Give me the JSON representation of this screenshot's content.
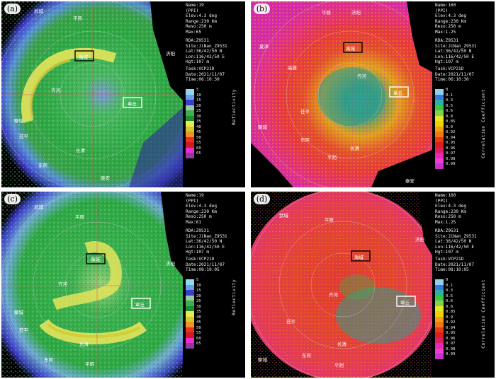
{
  "panels": [
    {
      "label": "(a)",
      "info": {
        "name": "Name:19",
        "product": "(PPI)",
        "elev": "Elev:4.3 deg",
        "range": "Range:230 Km",
        "reso": "Reso:250 m",
        "max": "Max:65",
        "rda": "RDA:Z9531",
        "site": "Site:JiNan_Z9531",
        "lat": "Lat:36/42/50 N",
        "lon": "Lon:116/42/50 E",
        "hgt": "Hgt:107 m",
        "task": "Task:VCP21D",
        "date": "Date:2021/11/07",
        "time": "Time:06:10:30"
      },
      "colorbar_title": "Reflectivity",
      "ticks": [
        "5",
        "10",
        "15",
        "20",
        "25",
        "30",
        "35",
        "40",
        "45",
        "50",
        "55",
        "60",
        "65"
      ],
      "colors": [
        "#90d8f0",
        "#6aa0e6",
        "#3c3ccd",
        "#99c8a0",
        "#3cb050",
        "#1e8c32",
        "#e8e850",
        "#d2c832",
        "#f09228",
        "#f02d1e",
        "#c81e1e",
        "#f028d2",
        "#8c3ca0"
      ],
      "places": [
        "武城",
        "平原",
        "禹城",
        "济阳",
        "章丘",
        "齐河",
        "茌平",
        "东阿",
        "泰安",
        "聊城",
        "长清"
      ]
    },
    {
      "label": "(b)",
      "info": {
        "name": "Name:160",
        "product": "(PPI)",
        "elev": "Elev:4.3 deg",
        "range": "Range:230 Km",
        "reso": "Reso:250 m",
        "max": "Max:1.25",
        "rda": "RDA:Z9531",
        "site": "Site:JiNan_Z9531",
        "lat": "Lat:36/42/50 N",
        "lon": "Lon:116/42/50 E",
        "hgt": "Hgt:107 m",
        "task": "Task:VCP21D",
        "date": "Date:2021/11/07",
        "time": "Time:06:10:30"
      },
      "colorbar_title": "Correlation Coefficient",
      "ticks": [
        "0",
        "0.1",
        "0.3",
        "0.5",
        "0.6",
        "0.8",
        "0.85",
        "0.9",
        "0.92",
        "0.94",
        "0.95",
        "0.96",
        "0.97",
        "0.98",
        "0.99"
      ],
      "colors": [
        "#8cd2f0",
        "#3c78dc",
        "#28b4a0",
        "#3cc83c",
        "#82d250",
        "#e6e628",
        "#f0d200",
        "#f0a014",
        "#f07814",
        "#e63c14",
        "#dc1e1e",
        "#dc1e64",
        "#e628b4",
        "#f03cd2",
        "#c832c8"
      ],
      "places": [
        "平原",
        "济阳",
        "夏津",
        "禹城",
        "高唐",
        "章丘",
        "齐河",
        "茌平",
        "聊城",
        "东阿",
        "长清",
        "平阴",
        "泰安"
      ]
    },
    {
      "label": "(c)",
      "info": {
        "name": "Name:19",
        "product": "(PPI)",
        "elev": "Elev:4.3 deg",
        "range": "Range:230 Km",
        "reso": "Reso:250 m",
        "max": "Max:61",
        "rda": "RDA:Z9531",
        "site": "Site:JiNan_Z9531",
        "lat": "Lat:36/42/50 N",
        "lon": "Lon:116/42/50 E",
        "hgt": "Hgt:107 m",
        "task": "Task:VCP21D",
        "date": "Date:2021/11/07",
        "time": "Time:08:10:05"
      },
      "colorbar_title": "Reflectivity",
      "ticks": [
        "5",
        "10",
        "15",
        "20",
        "25",
        "30",
        "35",
        "40",
        "45",
        "50",
        "55",
        "60",
        "65"
      ],
      "colors": [
        "#90d8f0",
        "#6aa0e6",
        "#3c3ccd",
        "#99c8a0",
        "#3cb050",
        "#1e8c32",
        "#e8e850",
        "#d2c832",
        "#f09228",
        "#f02d1e",
        "#c81e1e",
        "#f028d2",
        "#8c3ca0"
      ],
      "places": [
        "武城",
        "平原",
        "禹城",
        "济阳",
        "章丘",
        "齐河",
        "茌平",
        "东阿",
        "聊城",
        "长清",
        "平阴"
      ]
    },
    {
      "label": "(d)",
      "info": {
        "name": "Name:160",
        "product": "(PPI)",
        "elev": "Elev:4.3 deg",
        "range": "Range:230 Km",
        "reso": "Reso:250 m",
        "max": "Max:1.25",
        "rda": "RDA:Z9531",
        "site": "Site:JiNan_Z9531",
        "lat": "Lat:36/42/50 N",
        "lon": "Lon:116/42/50 E",
        "hgt": "Hgt:107 m",
        "task": "Task:VCP21D",
        "date": "Date:2021/11/07",
        "time": "Time:08:10:05"
      },
      "colorbar_title": "Correlation Coefficient",
      "ticks": [
        "0",
        "0.1",
        "0.3",
        "0.5",
        "0.6",
        "0.8",
        "0.85",
        "0.9",
        "0.92",
        "0.94",
        "0.95",
        "0.96",
        "0.97",
        "0.98",
        "0.99"
      ],
      "colors": [
        "#8cd2f0",
        "#3c78dc",
        "#28b4a0",
        "#3cc83c",
        "#82d250",
        "#e6e628",
        "#f0d200",
        "#f0a014",
        "#f07814",
        "#e63c14",
        "#dc1e1e",
        "#dc1e64",
        "#e628b4",
        "#f03cd2",
        "#c832c8"
      ],
      "places": [
        "武城",
        "平原",
        "禹城",
        "济阳",
        "章丘",
        "齐河",
        "茌平",
        "东阿",
        "聊城",
        "长清",
        "平阴"
      ]
    }
  ]
}
